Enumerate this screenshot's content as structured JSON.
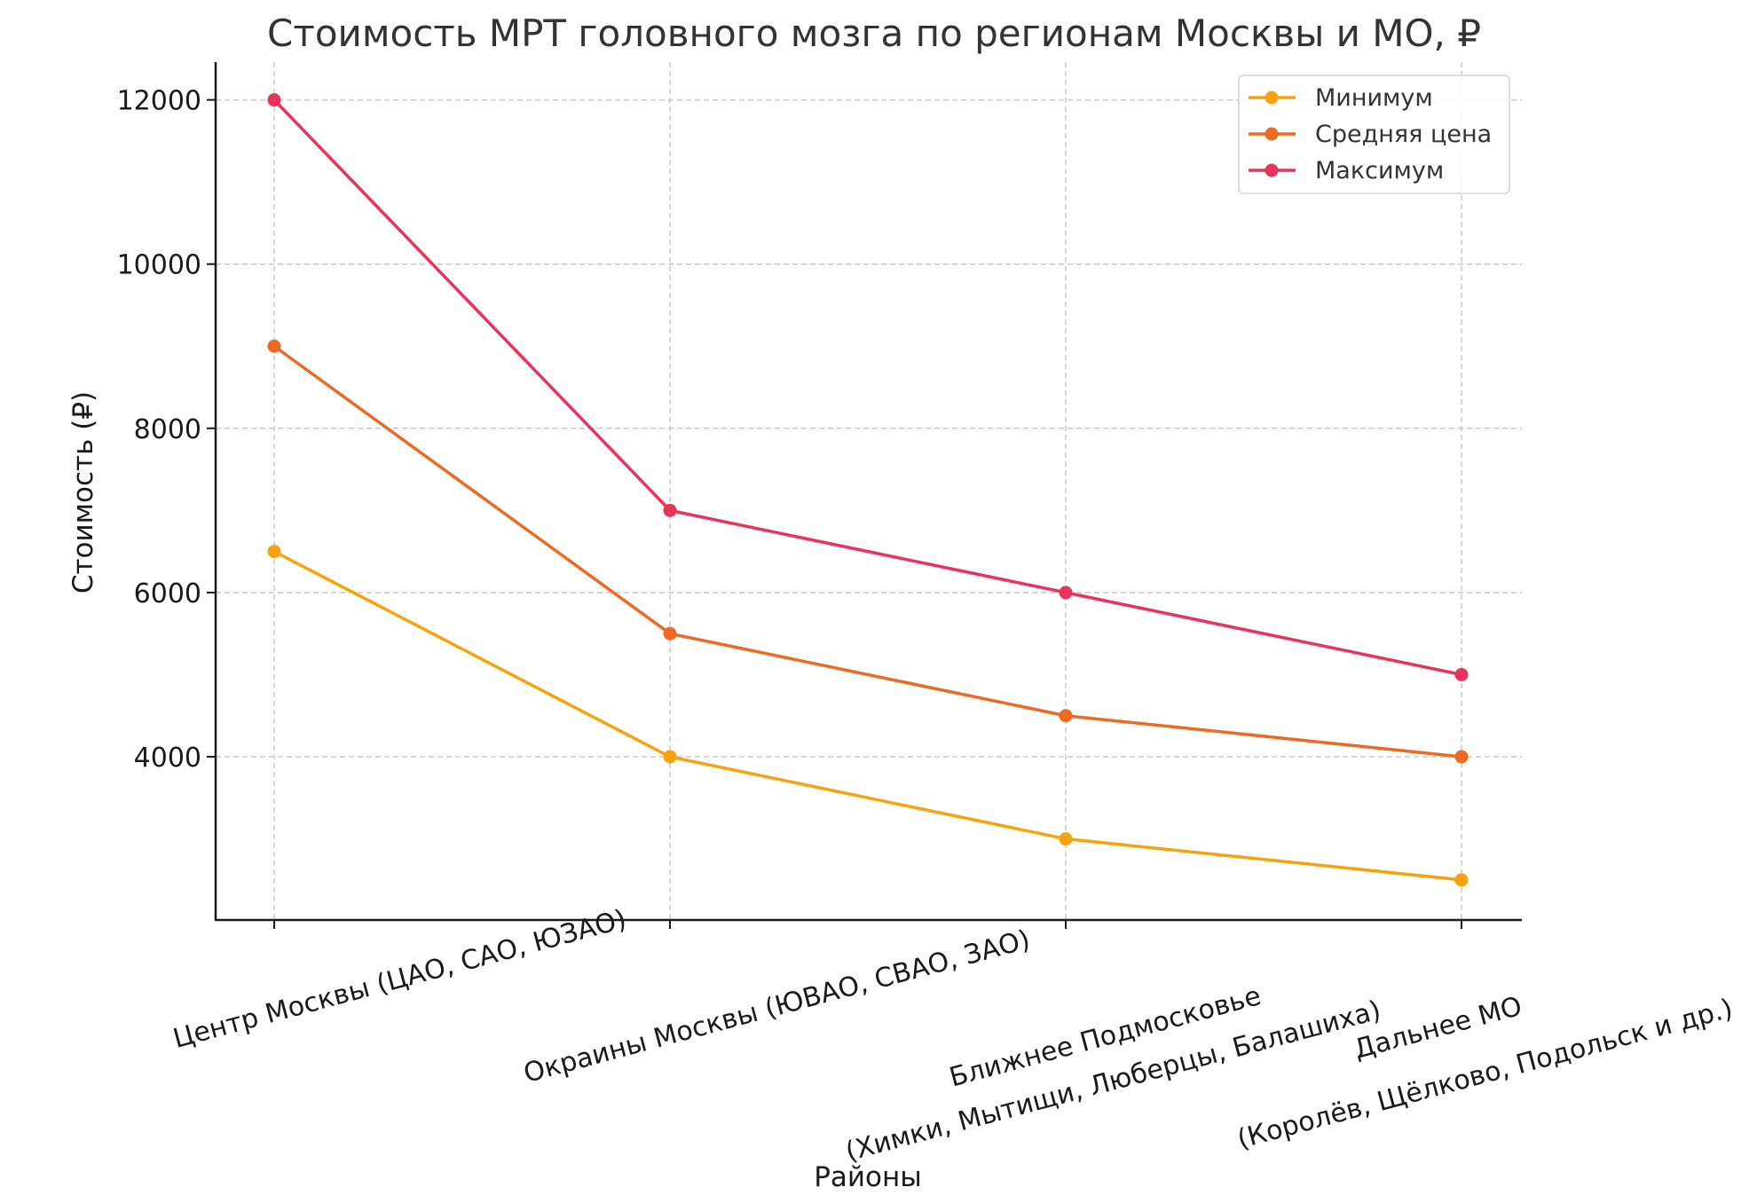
{
  "chart_data": {
    "type": "line",
    "title": "Стоимость МРТ головного мозга по регионам Москвы и МО, ₽",
    "xlabel": "Районы",
    "ylabel": "Стоимость (₽)",
    "categories": [
      [
        "Центр Москвы (ЦАО, САО, ЮЗАО)"
      ],
      [
        "Окраины Москвы (ЮВАО, СВАО, ЗАО)"
      ],
      [
        "Ближнее Подмосковье",
        "(Химки, Мытищи, Люберцы, Балашиха)"
      ],
      [
        "Дальнее МО",
        "(Королёв, Щёлково, Подольск и др.)"
      ]
    ],
    "yticks": [
      4000,
      6000,
      8000,
      10000,
      12000
    ],
    "ylim": [
      2000,
      12500
    ],
    "grid": true,
    "legend_position": "top-right",
    "series": [
      {
        "name": "Минимум",
        "color": "#f5a30f",
        "values": [
          6500,
          4000,
          3000,
          2500
        ]
      },
      {
        "name": "Средняя цена",
        "color": "#ec6a23",
        "values": [
          9000,
          5500,
          4500,
          4000
        ]
      },
      {
        "name": "Максимум",
        "color": "#e8345a",
        "values": [
          12000,
          7000,
          6000,
          5000
        ]
      }
    ]
  }
}
